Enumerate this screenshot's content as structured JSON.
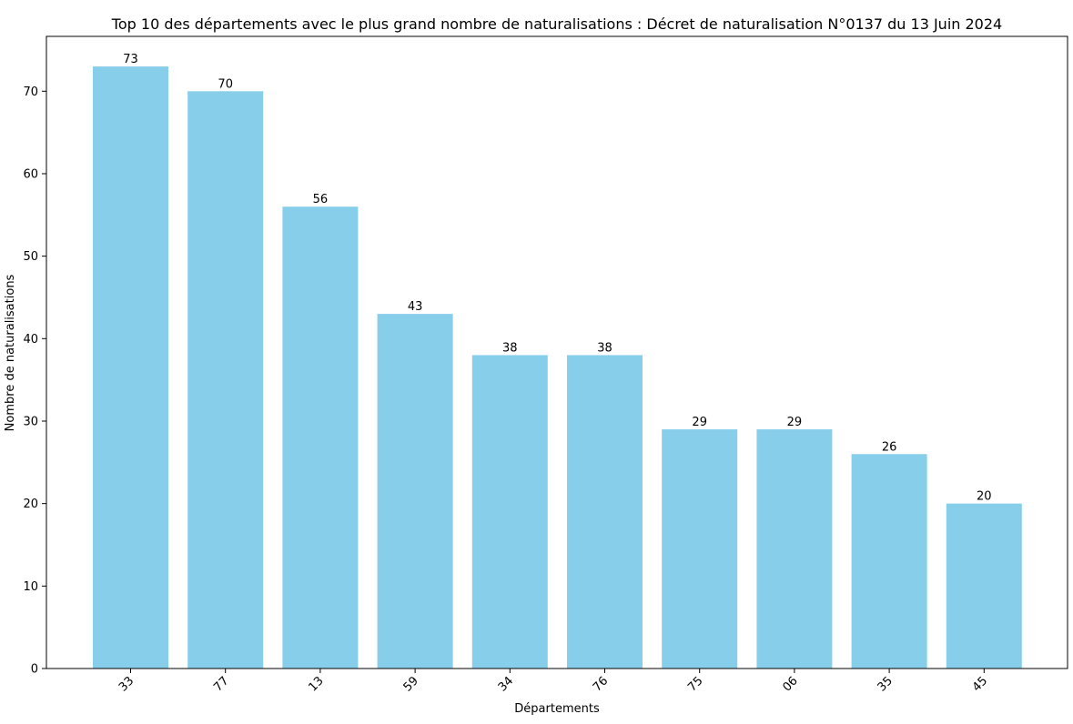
{
  "chart_data": {
    "type": "bar",
    "title": "Top 10 des départements avec le plus grand nombre de naturalisations : Décret de naturalisation N°0137 du 13 Juin 2024",
    "xlabel": "Départements",
    "ylabel": "Nombre de naturalisations",
    "categories": [
      "33",
      "77",
      "13",
      "59",
      "34",
      "76",
      "75",
      "06",
      "35",
      "45"
    ],
    "values": [
      73,
      70,
      56,
      43,
      38,
      38,
      29,
      29,
      26,
      20
    ],
    "data_labels": [
      "73",
      "70",
      "56",
      "43",
      "38",
      "38",
      "29",
      "29",
      "26",
      "20"
    ],
    "ylim": [
      0,
      76.65
    ],
    "yticks": [
      0,
      10,
      20,
      30,
      40,
      50,
      60,
      70
    ],
    "ytick_labels": [
      "0",
      "10",
      "20",
      "30",
      "40",
      "50",
      "60",
      "70"
    ],
    "xtick_rotation_deg": 45,
    "bar_color": "#87ceeb",
    "grid": false,
    "legend": "none"
  }
}
